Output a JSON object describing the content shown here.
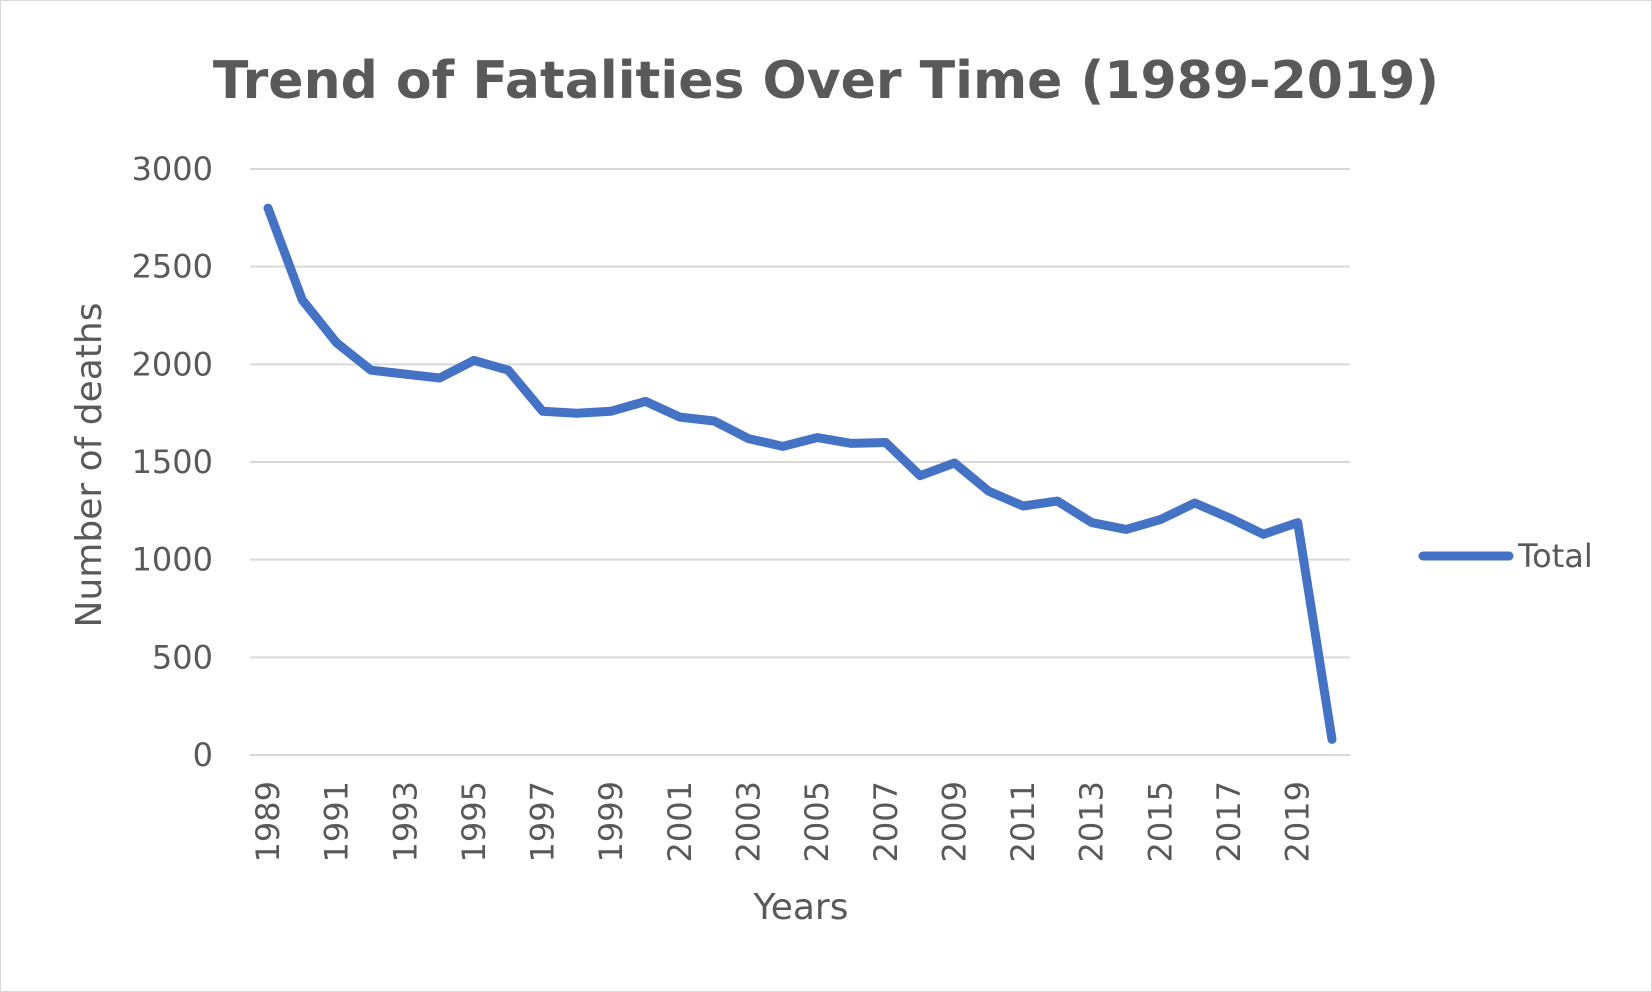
{
  "chart_data": {
    "type": "line",
    "title": "Trend of Fatalities Over Time (1989-2019)",
    "xlabel": "Years",
    "ylabel": "Number of deaths",
    "ylim": [
      0,
      3000
    ],
    "yticks": [
      0,
      500,
      1000,
      1500,
      2000,
      2500,
      3000
    ],
    "xtick_labels": [
      "1989",
      "1991",
      "1993",
      "1995",
      "1997",
      "1999",
      "2001",
      "2003",
      "2005",
      "2007",
      "2009",
      "2011",
      "2013",
      "2015",
      "2017",
      "2019"
    ],
    "grid": true,
    "legend_position": "right",
    "x": [
      1989,
      1990,
      1991,
      1992,
      1993,
      1994,
      1995,
      1996,
      1997,
      1998,
      1999,
      2000,
      2001,
      2002,
      2003,
      2004,
      2005,
      2006,
      2007,
      2008,
      2009,
      2010,
      2011,
      2012,
      2013,
      2014,
      2015,
      2016,
      2017,
      2018,
      2019,
      2020
    ],
    "series": [
      {
        "name": "Total",
        "color": "#4472C4",
        "values": [
          2800,
          2330,
          2110,
          1970,
          1950,
          1930,
          2020,
          1970,
          1760,
          1750,
          1760,
          1810,
          1730,
          1710,
          1620,
          1580,
          1625,
          1595,
          1600,
          1430,
          1495,
          1350,
          1275,
          1300,
          1190,
          1155,
          1205,
          1290,
          1215,
          1130,
          1190,
          80
        ]
      }
    ]
  }
}
